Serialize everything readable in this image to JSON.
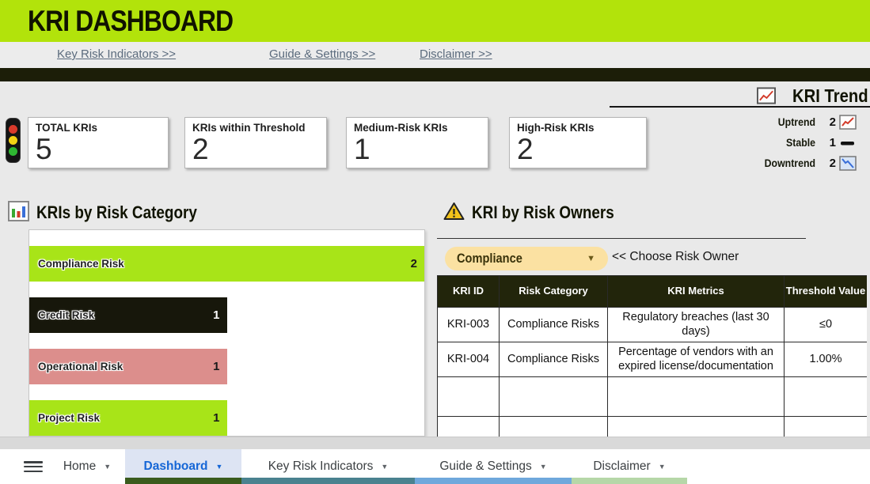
{
  "header": {
    "title": "KRI DASHBOARD",
    "bg_color": "#b2e30b"
  },
  "nav_links": [
    {
      "label": "Key Risk Indicators >>"
    },
    {
      "label": "Guide & Settings >>"
    },
    {
      "label": "Disclaimer >>"
    }
  ],
  "kpis": [
    {
      "label": "TOTAL KRIs",
      "value": "5"
    },
    {
      "label": "KRIs within Threshold",
      "value": "2"
    },
    {
      "label": "Medium-Risk KRIs",
      "value": "1"
    },
    {
      "label": "High-Risk KRIs",
      "value": "2"
    }
  ],
  "trend": {
    "title": "KRI Trend",
    "icon": "trend-chart-icon",
    "rows": [
      {
        "label": "Uptrend",
        "value": "2",
        "icon": "uptrend-icon"
      },
      {
        "label": "Stable",
        "value": "1",
        "icon": "stable-icon"
      },
      {
        "label": "Downtrend",
        "value": "2",
        "icon": "downtrend-icon"
      }
    ]
  },
  "chart_section": {
    "title": "KRIs by Risk Category",
    "icon": "bar-chart-icon"
  },
  "chart_data": {
    "type": "bar",
    "orientation": "horizontal",
    "title": "KRIs by Risk Category",
    "categories": [
      "Compliance Risk",
      "Credit Risk",
      "Operational Risk",
      "Project Risk"
    ],
    "values": [
      2,
      1,
      1,
      1
    ],
    "xlim": [
      0,
      2
    ],
    "bar_colors": [
      "#a8e418",
      "#17170b",
      "#dc8e8c",
      "#a8e418"
    ],
    "value_label_colors": [
      "#1a1a1a",
      "#ffffff",
      "#1a1a1a",
      "#1a1a1a"
    ],
    "data_labels": true,
    "grid": false,
    "legend": false
  },
  "owners_section": {
    "title": "KRI by Risk Owners",
    "icon": "warning-icon",
    "dropdown": {
      "value": "Compliance",
      "hint": "<< Choose Risk Owner"
    },
    "table": {
      "headers": [
        "KRI ID",
        "Risk Category",
        "KRI Metrics",
        "Threshold Value"
      ],
      "rows": [
        [
          "KRI-003",
          "Compliance Risks",
          "Regulatory breaches (last 30 days)",
          "≤0"
        ],
        [
          "KRI-004",
          "Compliance Risks",
          "Percentage of vendors with an expired license/documentation",
          "1.00%"
        ],
        [
          "",
          "",
          "",
          ""
        ],
        [
          "",
          "",
          "",
          ""
        ]
      ]
    }
  },
  "tabbar": {
    "tabs": [
      {
        "label": "Home",
        "active": false,
        "strip_color": null
      },
      {
        "label": "Dashboard",
        "active": true,
        "strip_color": "#3a5b1d"
      },
      {
        "label": "Key Risk Indicators",
        "active": false,
        "strip_color": "#4a828f"
      },
      {
        "label": "Guide & Settings",
        "active": false,
        "strip_color": "#6fa8dc"
      },
      {
        "label": "Disclaimer",
        "active": false,
        "strip_color": "#b6d7a8"
      }
    ]
  },
  "colors": {
    "header_bg": "#b2e30b",
    "dark_bar": "#1c1e08",
    "lime_bar": "#a8e418",
    "black_bar": "#17170b",
    "salmon_bar": "#dc8e8c",
    "table_header_bg": "#22250b",
    "dropdown_bg": "#fbe1a2",
    "active_tab_bg": "#dde4f3",
    "active_tab_text": "#1566d6",
    "uptrend_color": "#d23b2a",
    "downtrend_color": "#3a6fd8"
  }
}
